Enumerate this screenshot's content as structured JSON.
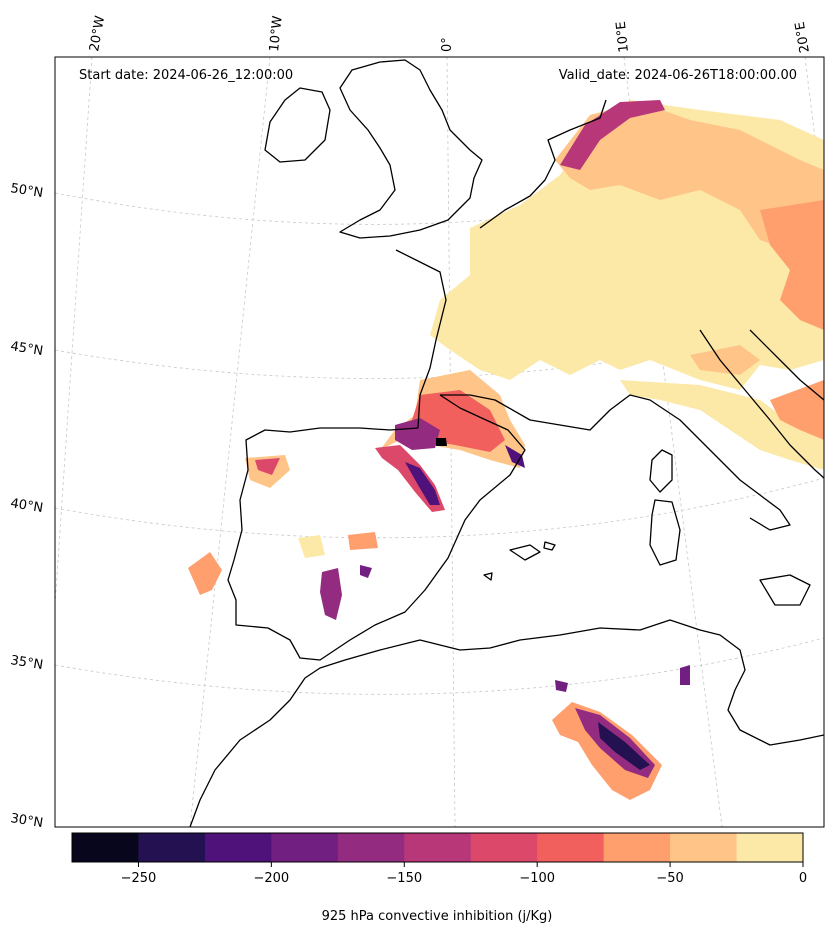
{
  "header": {
    "start_date": "Start date: 2024-06-26_12:00:00",
    "valid_date": "Valid_date: 2024-06-26T18:00:00.00"
  },
  "longitude_labels": [
    "20°W",
    "10°W",
    "0°",
    "10°E",
    "20°E"
  ],
  "latitude_labels": [
    "50°N",
    "45°N",
    "40°N",
    "35°N",
    "30°N"
  ],
  "colorbar": {
    "label": "925 hPa convective inhibition (j/Kg)",
    "tick_labels": [
      "−250",
      "−200",
      "−150",
      "−100",
      "−50",
      "0"
    ],
    "levels": [
      -275,
      -250,
      -225,
      -200,
      -175,
      -150,
      -125,
      -100,
      -75,
      -50,
      -25,
      0
    ],
    "colors": [
      "#07061c",
      "#231151",
      "#4f127b",
      "#711f81",
      "#932b80",
      "#b73779",
      "#dc4869",
      "#f1605d",
      "#fe9f6d",
      "#fec488",
      "#fce9a7"
    ]
  },
  "theme": {
    "coastline": "#000000",
    "gridline": "#c8c8c8"
  }
}
